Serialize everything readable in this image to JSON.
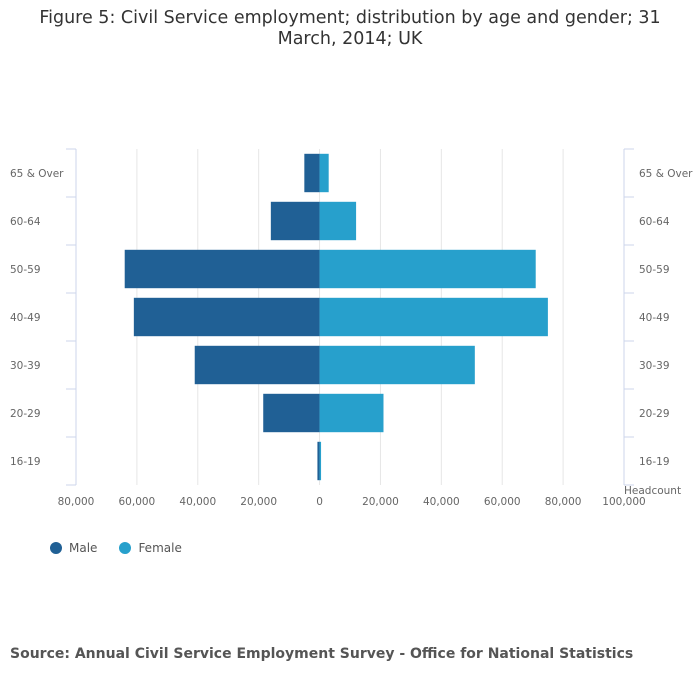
{
  "title": "Figure 5: Civil Service employment; distribution by age and gender; 31 March, 2014; UK",
  "source": "Source: Annual Civil Service Employment Survey - Office for National Statistics",
  "chart_data": {
    "type": "bar",
    "orientation": "horizontal-diverging",
    "categories": [
      "65 & Over",
      "60-64",
      "50-59",
      "40-49",
      "30-39",
      "20-29",
      "16-19"
    ],
    "series": [
      {
        "name": "Male",
        "color": "#206095",
        "values": [
          5000,
          16000,
          64000,
          61000,
          41000,
          18500,
          700
        ]
      },
      {
        "name": "Female",
        "color": "#27a0cc",
        "values": [
          3000,
          12000,
          71000,
          75000,
          51000,
          21000,
          400
        ]
      }
    ],
    "x_ticks": [
      "80,000",
      "60,000",
      "40,000",
      "20,000",
      "0",
      "20,000",
      "40,000",
      "60,000",
      "80,000",
      "100,000"
    ],
    "xlim": [
      -80000,
      100000
    ],
    "xlabel": "Headcount",
    "grid": true,
    "legend_position": "bottom-left"
  }
}
